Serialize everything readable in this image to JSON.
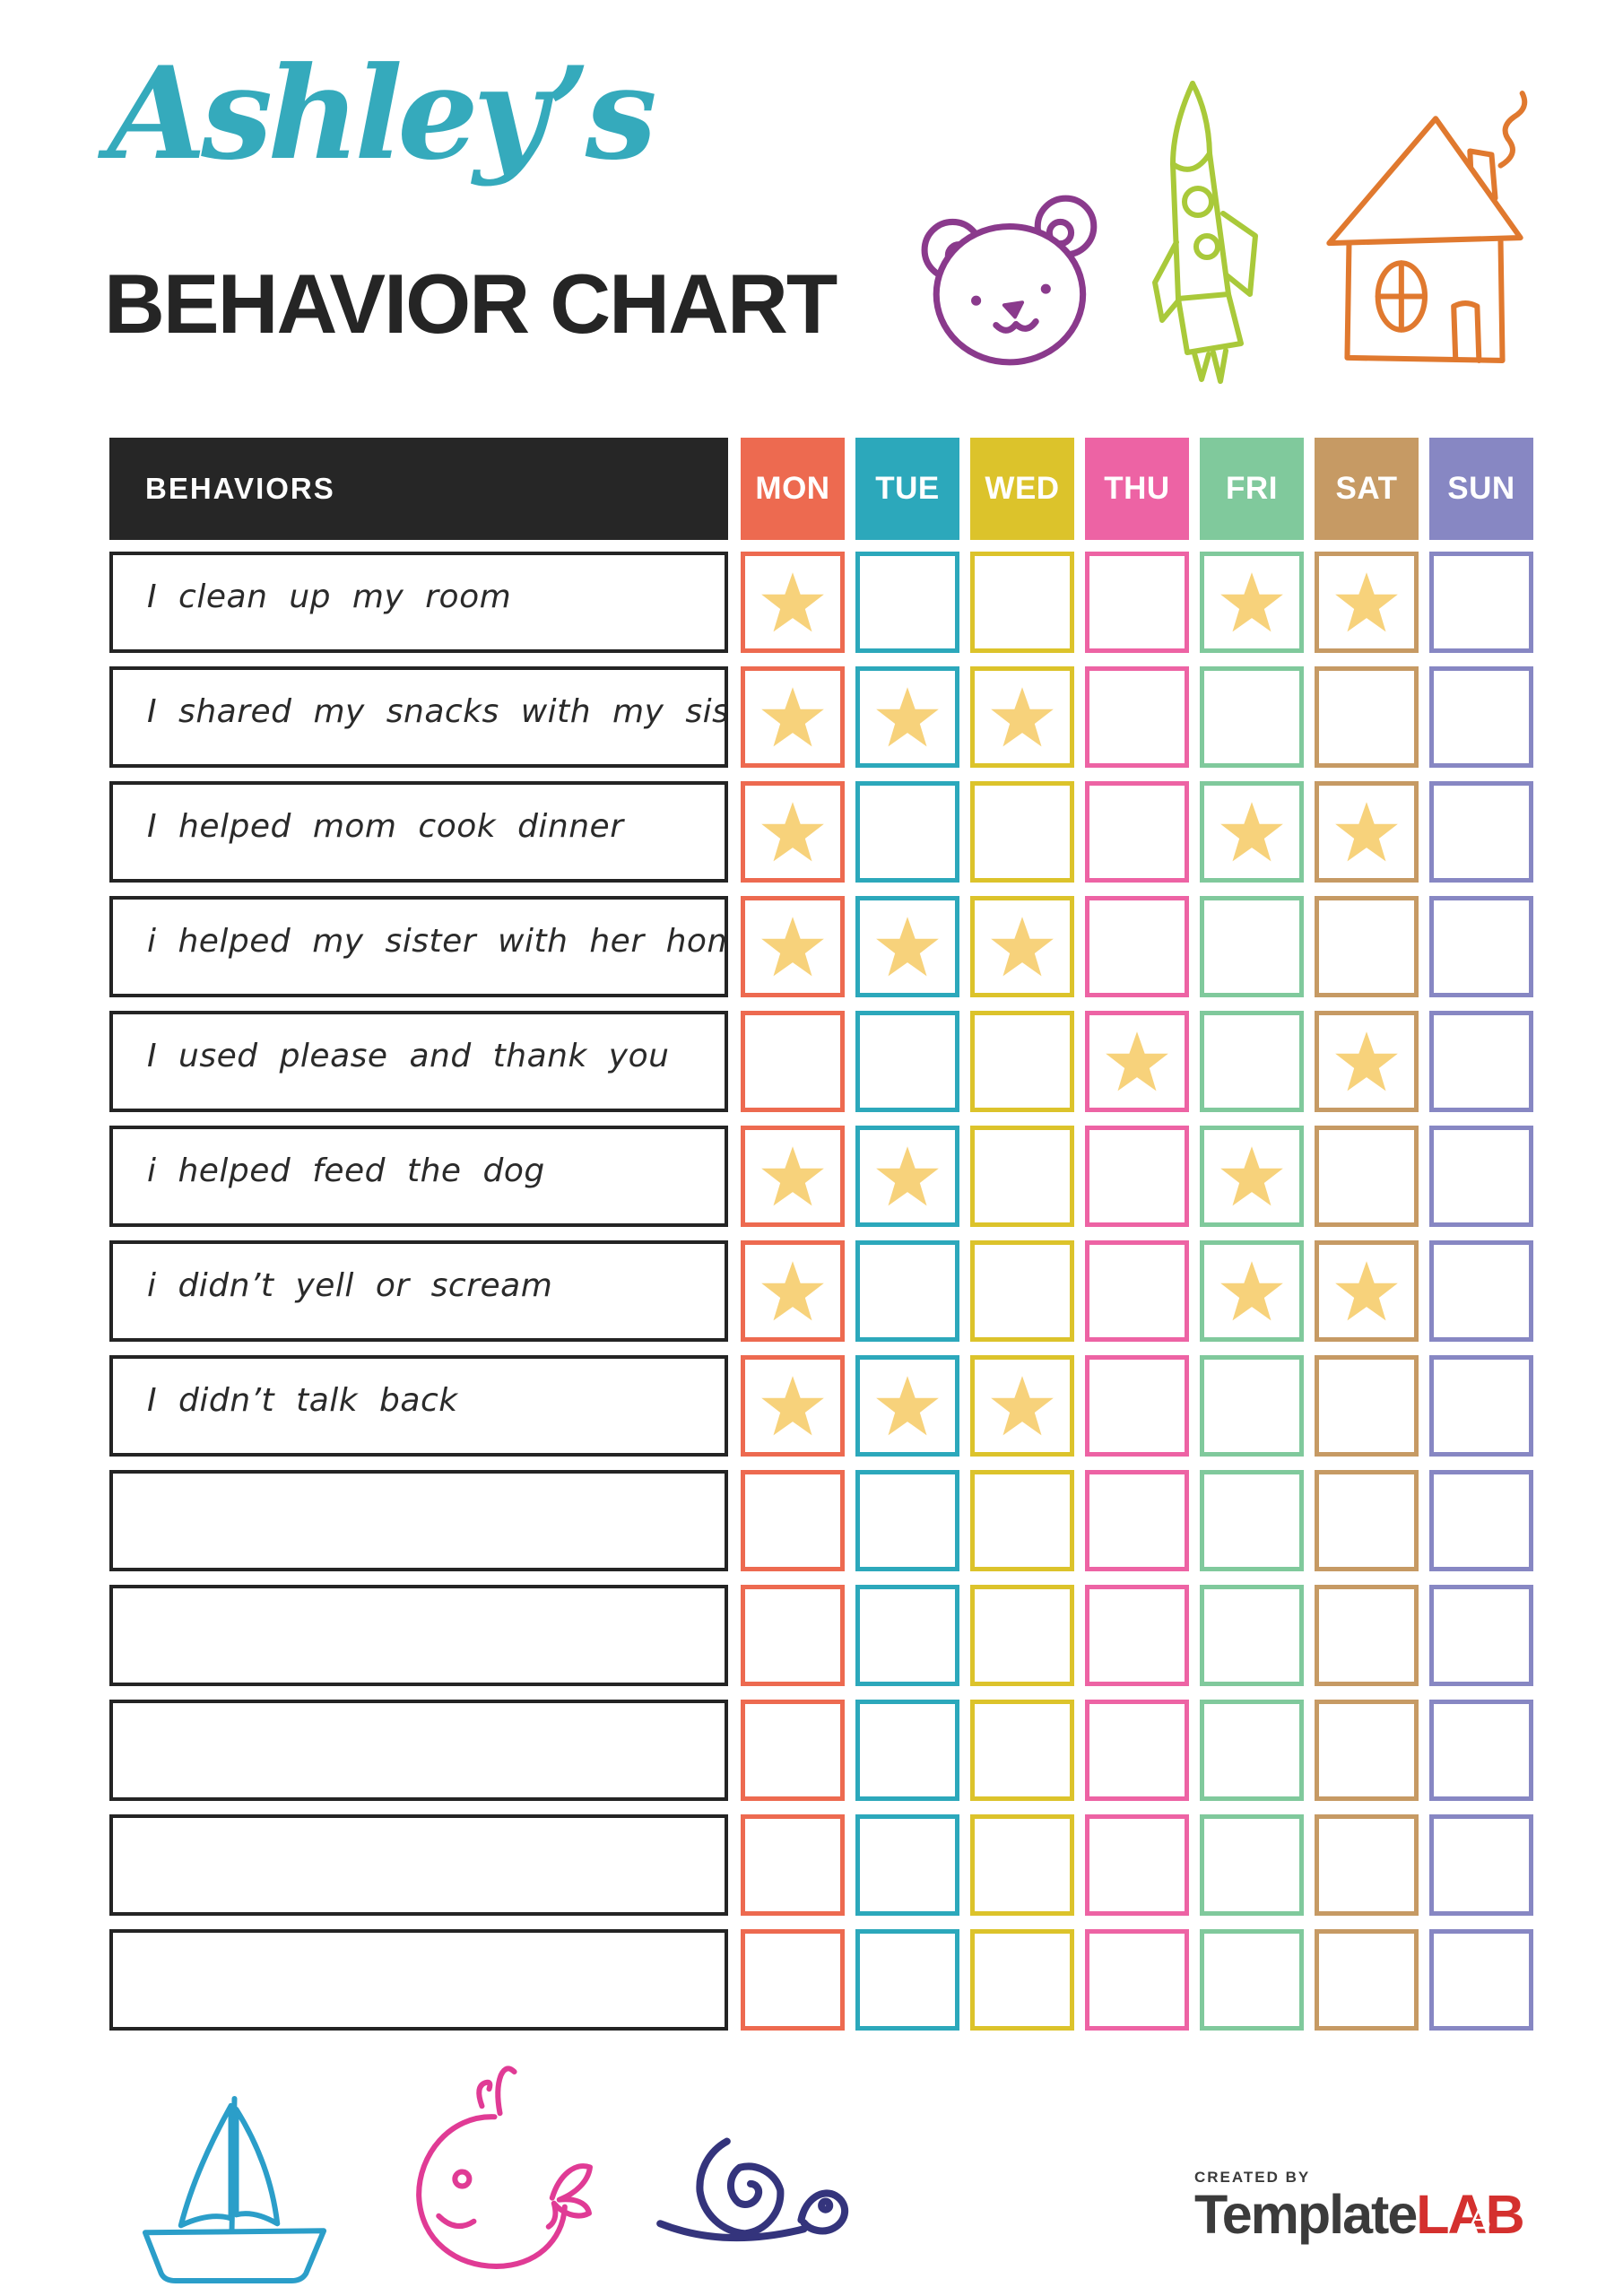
{
  "page": {
    "title_script": "Ashley’s",
    "title_main": "BEHAVIOR CHART"
  },
  "table": {
    "header": {
      "behaviors": "BEHAVIORS",
      "days": [
        "MON",
        "TUE",
        "WED",
        "THU",
        "FRI",
        "SAT",
        "SUN"
      ]
    },
    "day_colors": [
      "#ed6a50",
      "#2ca8bb",
      "#dcc32b",
      "#ed63a4",
      "#80c99c",
      "#c69a64",
      "#8787c3"
    ],
    "rows": [
      {
        "behavior": "I clean up my room",
        "stars": [
          "MON",
          "FRI",
          "SAT"
        ]
      },
      {
        "behavior": "I shared my snacks with my sister",
        "stars": [
          "MON",
          "TUE",
          "WED"
        ]
      },
      {
        "behavior": "I helped mom cook dinner",
        "stars": [
          "MON",
          "FRI",
          "SAT"
        ]
      },
      {
        "behavior": "i helped my sister with her homework",
        "stars": [
          "MON",
          "TUE",
          "WED"
        ]
      },
      {
        "behavior": "I used please and thank you",
        "stars": [
          "THU",
          "SAT"
        ]
      },
      {
        "behavior": "i helped feed the dog",
        "stars": [
          "MON",
          "TUE",
          "FRI"
        ]
      },
      {
        "behavior": "i didn’t yell or scream",
        "stars": [
          "MON",
          "FRI",
          "SAT"
        ]
      },
      {
        "behavior": "I didn’t talk back",
        "stars": [
          "MON",
          "TUE",
          "WED"
        ]
      },
      {
        "behavior": "",
        "stars": []
      },
      {
        "behavior": "",
        "stars": []
      },
      {
        "behavior": "",
        "stars": []
      },
      {
        "behavior": "",
        "stars": []
      },
      {
        "behavior": "",
        "stars": []
      }
    ]
  },
  "icons": {
    "top_decorations": [
      "bear-icon",
      "rocket-icon",
      "house-icon"
    ],
    "bottom_decorations": [
      "sailboat-icon",
      "whale-icon",
      "snail-icon"
    ],
    "star": "star-icon"
  },
  "footer": {
    "created_by": "CREATED BY",
    "brand_name": "Template",
    "brand_suffix": "LAB"
  },
  "colors": {
    "title_script": "#35aabc",
    "title_main": "#252525",
    "header_bg": "#262626",
    "row_border": "#242424",
    "star": "#f7d27b",
    "bear": "#8a3a8c",
    "rocket": "#a9c93a",
    "house": "#e0792f",
    "sailboat": "#2b9ec9",
    "whale": "#e03b95",
    "snail": "#34347c",
    "logo_red": "#d4302e",
    "logo_gray": "#3b3b3b"
  }
}
